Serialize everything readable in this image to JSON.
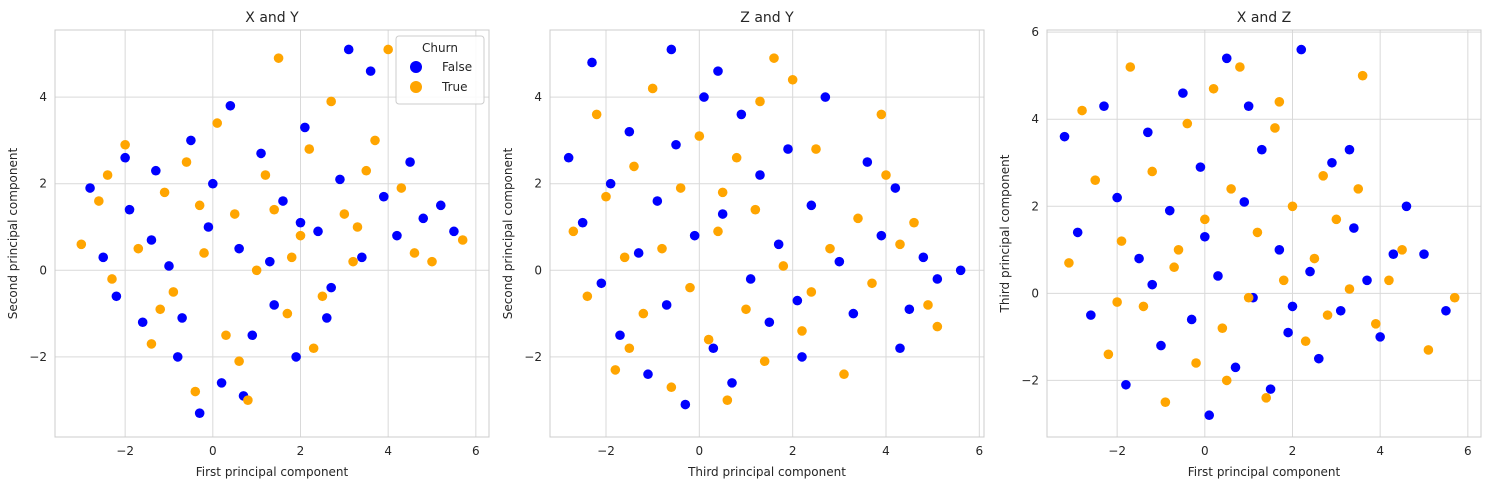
{
  "colors": {
    "False": "#0000ff",
    "True": "#ffa500",
    "grid": "#d9d9d9",
    "frame": "#cccccc"
  },
  "chart_data": [
    {
      "type": "scatter",
      "title": "X and Y",
      "xlabel": "First principal component",
      "ylabel": "Second principal component",
      "xlim": [
        -3.6,
        6.3
      ],
      "ylim": [
        -3.85,
        5.55
      ],
      "xticks": [
        -2,
        0,
        2,
        4,
        6
      ],
      "yticks": [
        -2,
        0,
        2,
        4
      ],
      "xtick_labels": [
        "−2",
        "0",
        "2",
        "4",
        "6"
      ],
      "ytick_labels": [
        "−2",
        "0",
        "2",
        "4"
      ],
      "grid": true,
      "legend": {
        "title": "Churn",
        "placement": "top-right",
        "entries": [
          "False",
          "True"
        ]
      },
      "series": [
        {
          "name": "False",
          "color": "#0000ff",
          "points": [
            [
              -2.8,
              1.9
            ],
            [
              -2.5,
              0.3
            ],
            [
              -2.2,
              -0.6
            ],
            [
              -1.9,
              1.4
            ],
            [
              -1.6,
              -1.2
            ],
            [
              -1.3,
              2.3
            ],
            [
              -1.0,
              0.1
            ],
            [
              -0.8,
              -2.0
            ],
            [
              -0.5,
              3.0
            ],
            [
              -0.3,
              -3.3
            ],
            [
              -0.1,
              1.0
            ],
            [
              0.2,
              -2.6
            ],
            [
              0.4,
              3.8
            ],
            [
              0.6,
              0.5
            ],
            [
              0.9,
              -1.5
            ],
            [
              1.1,
              2.7
            ],
            [
              1.4,
              -0.8
            ],
            [
              1.6,
              1.6
            ],
            [
              1.9,
              -2.0
            ],
            [
              2.1,
              3.3
            ],
            [
              2.4,
              0.9
            ],
            [
              2.6,
              -1.1
            ],
            [
              2.9,
              2.1
            ],
            [
              3.1,
              5.1
            ],
            [
              3.4,
              0.3
            ],
            [
              3.6,
              4.6
            ],
            [
              3.9,
              1.7
            ],
            [
              4.2,
              0.8
            ],
            [
              4.5,
              2.5
            ],
            [
              4.8,
              1.2
            ],
            [
              5.2,
              1.5
            ],
            [
              5.5,
              0.9
            ],
            [
              -2.0,
              2.6
            ],
            [
              -1.4,
              0.7
            ],
            [
              -0.7,
              -1.1
            ],
            [
              0.0,
              2.0
            ],
            [
              0.7,
              -2.9
            ],
            [
              1.3,
              0.2
            ],
            [
              2.0,
              1.1
            ],
            [
              2.7,
              -0.4
            ]
          ]
        },
        {
          "name": "True",
          "color": "#ffa500",
          "points": [
            [
              -3.0,
              0.6
            ],
            [
              -2.6,
              1.6
            ],
            [
              -2.3,
              -0.2
            ],
            [
              -2.0,
              2.9
            ],
            [
              -1.7,
              0.5
            ],
            [
              -1.4,
              -1.7
            ],
            [
              -1.1,
              1.8
            ],
            [
              -0.9,
              -0.5
            ],
            [
              -0.6,
              2.5
            ],
            [
              -0.4,
              -2.8
            ],
            [
              -0.2,
              0.4
            ],
            [
              0.1,
              3.4
            ],
            [
              0.3,
              -1.5
            ],
            [
              0.5,
              1.3
            ],
            [
              0.8,
              -3.0
            ],
            [
              1.0,
              0.0
            ],
            [
              1.2,
              2.2
            ],
            [
              1.5,
              4.9
            ],
            [
              1.7,
              -1.0
            ],
            [
              2.0,
              0.8
            ],
            [
              2.2,
              2.8
            ],
            [
              2.5,
              -0.6
            ],
            [
              2.7,
              3.9
            ],
            [
              3.0,
              1.3
            ],
            [
              3.2,
              0.2
            ],
            [
              3.5,
              2.3
            ],
            [
              3.7,
              3.0
            ],
            [
              4.0,
              5.1
            ],
            [
              4.3,
              1.9
            ],
            [
              4.6,
              0.4
            ],
            [
              5.0,
              0.2
            ],
            [
              5.7,
              0.7
            ],
            [
              -2.4,
              2.2
            ],
            [
              -1.2,
              -0.9
            ],
            [
              -0.3,
              1.5
            ],
            [
              0.6,
              -2.1
            ],
            [
              1.4,
              1.4
            ],
            [
              2.3,
              -1.8
            ],
            [
              3.3,
              1.0
            ],
            [
              1.8,
              0.3
            ]
          ]
        }
      ]
    },
    {
      "type": "scatter",
      "title": "Z and Y",
      "xlabel": "Third principal component",
      "ylabel": "Second principal component",
      "xlim": [
        -3.2,
        6.1
      ],
      "ylim": [
        -3.85,
        5.55
      ],
      "xticks": [
        -2,
        0,
        2,
        4,
        6
      ],
      "yticks": [
        -2,
        0,
        2,
        4
      ],
      "xtick_labels": [
        "−2",
        "0",
        "2",
        "4",
        "6"
      ],
      "ytick_labels": [
        "−2",
        "0",
        "2",
        "4"
      ],
      "grid": true,
      "series": [
        {
          "name": "False",
          "color": "#0000ff",
          "points": [
            [
              -2.8,
              2.6
            ],
            [
              -2.5,
              1.1
            ],
            [
              -2.3,
              4.8
            ],
            [
              -2.1,
              -0.3
            ],
            [
              -1.9,
              2.0
            ],
            [
              -1.7,
              -1.5
            ],
            [
              -1.5,
              3.2
            ],
            [
              -1.3,
              0.4
            ],
            [
              -1.1,
              -2.4
            ],
            [
              -0.9,
              1.6
            ],
            [
              -0.7,
              -0.8
            ],
            [
              -0.5,
              2.9
            ],
            [
              -0.3,
              -3.1
            ],
            [
              -0.1,
              0.8
            ],
            [
              0.1,
              4.0
            ],
            [
              0.3,
              -1.8
            ],
            [
              0.5,
              1.3
            ],
            [
              0.7,
              -2.6
            ],
            [
              0.9,
              3.6
            ],
            [
              1.1,
              -0.2
            ],
            [
              1.3,
              2.2
            ],
            [
              1.5,
              -1.2
            ],
            [
              1.7,
              0.6
            ],
            [
              1.9,
              2.8
            ],
            [
              2.1,
              -0.7
            ],
            [
              2.4,
              1.5
            ],
            [
              2.7,
              4.0
            ],
            [
              3.0,
              0.2
            ],
            [
              3.3,
              -1.0
            ],
            [
              3.6,
              2.5
            ],
            [
              3.9,
              0.8
            ],
            [
              4.2,
              1.9
            ],
            [
              4.5,
              -0.9
            ],
            [
              4.8,
              0.3
            ],
            [
              5.1,
              -0.2
            ],
            [
              5.6,
              0.0
            ],
            [
              -0.6,
              5.1
            ],
            [
              0.4,
              4.6
            ],
            [
              2.2,
              -2.0
            ],
            [
              4.3,
              -1.8
            ]
          ]
        },
        {
          "name": "True",
          "color": "#ffa500",
          "points": [
            [
              -2.7,
              0.9
            ],
            [
              -2.4,
              -0.6
            ],
            [
              -2.2,
              3.6
            ],
            [
              -2.0,
              1.7
            ],
            [
              -1.8,
              -2.3
            ],
            [
              -1.6,
              0.3
            ],
            [
              -1.4,
              2.4
            ],
            [
              -1.2,
              -1.0
            ],
            [
              -1.0,
              4.2
            ],
            [
              -0.8,
              0.5
            ],
            [
              -0.6,
              -2.7
            ],
            [
              -0.4,
              1.9
            ],
            [
              -0.2,
              -0.4
            ],
            [
              0.0,
              3.1
            ],
            [
              0.2,
              -1.6
            ],
            [
              0.4,
              0.9
            ],
            [
              0.6,
              -3.0
            ],
            [
              0.8,
              2.6
            ],
            [
              1.0,
              -0.9
            ],
            [
              1.2,
              1.4
            ],
            [
              1.4,
              -2.1
            ],
            [
              1.6,
              4.9
            ],
            [
              1.8,
              0.1
            ],
            [
              2.0,
              4.4
            ],
            [
              2.2,
              -1.4
            ],
            [
              2.5,
              2.8
            ],
            [
              2.8,
              0.5
            ],
            [
              3.1,
              -2.4
            ],
            [
              3.4,
              1.2
            ],
            [
              3.7,
              -0.3
            ],
            [
              4.0,
              2.2
            ],
            [
              4.3,
              0.6
            ],
            [
              4.6,
              1.1
            ],
            [
              4.9,
              -0.8
            ],
            [
              5.1,
              -1.3
            ],
            [
              -1.5,
              -1.8
            ],
            [
              0.5,
              1.8
            ],
            [
              1.3,
              3.9
            ],
            [
              2.4,
              -0.5
            ],
            [
              3.9,
              3.6
            ]
          ]
        }
      ]
    },
    {
      "type": "scatter",
      "title": "X and Z",
      "xlabel": "First principal component",
      "ylabel": "Third principal component",
      "xlim": [
        -3.6,
        6.3
      ],
      "ylim": [
        -3.3,
        6.05
      ],
      "xticks": [
        -2,
        0,
        2,
        4,
        6
      ],
      "yticks": [
        -2,
        0,
        2,
        4,
        6
      ],
      "xtick_labels": [
        "−2",
        "0",
        "2",
        "4",
        "6"
      ],
      "ytick_labels": [
        "−2",
        "0",
        "2",
        "4",
        "6"
      ],
      "grid": true,
      "series": [
        {
          "name": "False",
          "color": "#0000ff",
          "points": [
            [
              -3.2,
              3.6
            ],
            [
              -2.9,
              1.4
            ],
            [
              -2.6,
              -0.5
            ],
            [
              -2.3,
              4.3
            ],
            [
              -2.0,
              2.2
            ],
            [
              -1.8,
              -2.1
            ],
            [
              -1.5,
              0.8
            ],
            [
              -1.3,
              3.7
            ],
            [
              -1.0,
              -1.2
            ],
            [
              -0.8,
              1.9
            ],
            [
              -0.5,
              4.6
            ],
            [
              -0.3,
              -0.6
            ],
            [
              -0.1,
              2.9
            ],
            [
              0.1,
              -2.8
            ],
            [
              0.3,
              0.4
            ],
            [
              0.5,
              5.4
            ],
            [
              0.7,
              -1.7
            ],
            [
              0.9,
              2.1
            ],
            [
              1.1,
              -0.1
            ],
            [
              1.3,
              3.3
            ],
            [
              1.5,
              -2.2
            ],
            [
              1.7,
              1.0
            ],
            [
              1.9,
              -0.9
            ],
            [
              2.2,
              5.6
            ],
            [
              2.4,
              0.5
            ],
            [
              2.6,
              -1.5
            ],
            [
              2.9,
              3.0
            ],
            [
              3.1,
              -0.4
            ],
            [
              3.4,
              1.5
            ],
            [
              3.7,
              0.3
            ],
            [
              4.0,
              -1.0
            ],
            [
              4.3,
              0.9
            ],
            [
              4.6,
              2.0
            ],
            [
              5.0,
              0.9
            ],
            [
              5.5,
              -0.4
            ],
            [
              -1.2,
              0.2
            ],
            [
              0.0,
              1.3
            ],
            [
              1.0,
              4.3
            ],
            [
              2.0,
              -0.3
            ],
            [
              3.3,
              3.3
            ]
          ]
        },
        {
          "name": "True",
          "color": "#ffa500",
          "points": [
            [
              -3.1,
              0.7
            ],
            [
              -2.8,
              4.2
            ],
            [
              -2.5,
              2.6
            ],
            [
              -2.2,
              -1.4
            ],
            [
              -1.9,
              1.2
            ],
            [
              -1.7,
              5.2
            ],
            [
              -1.4,
              -0.3
            ],
            [
              -1.2,
              2.8
            ],
            [
              -0.9,
              -2.5
            ],
            [
              -0.7,
              0.6
            ],
            [
              -0.4,
              3.9
            ],
            [
              -0.2,
              -1.6
            ],
            [
              0.0,
              1.7
            ],
            [
              0.2,
              4.7
            ],
            [
              0.4,
              -0.8
            ],
            [
              0.6,
              2.4
            ],
            [
              0.8,
              5.2
            ],
            [
              1.0,
              -0.1
            ],
            [
              1.2,
              1.4
            ],
            [
              1.4,
              -2.4
            ],
            [
              1.6,
              3.8
            ],
            [
              1.8,
              0.3
            ],
            [
              2.0,
              2.0
            ],
            [
              2.3,
              -1.1
            ],
            [
              2.5,
              0.8
            ],
            [
              2.8,
              -0.5
            ],
            [
              3.0,
              1.7
            ],
            [
              3.3,
              0.1
            ],
            [
              3.6,
              5.0
            ],
            [
              3.9,
              -0.7
            ],
            [
              4.2,
              0.3
            ],
            [
              4.5,
              1.0
            ],
            [
              5.1,
              -1.3
            ],
            [
              5.7,
              -0.1
            ],
            [
              -2.0,
              -0.2
            ],
            [
              -0.6,
              1.0
            ],
            [
              0.5,
              -2.0
            ],
            [
              1.7,
              4.4
            ],
            [
              2.7,
              2.7
            ],
            [
              3.5,
              2.4
            ]
          ]
        }
      ]
    }
  ]
}
